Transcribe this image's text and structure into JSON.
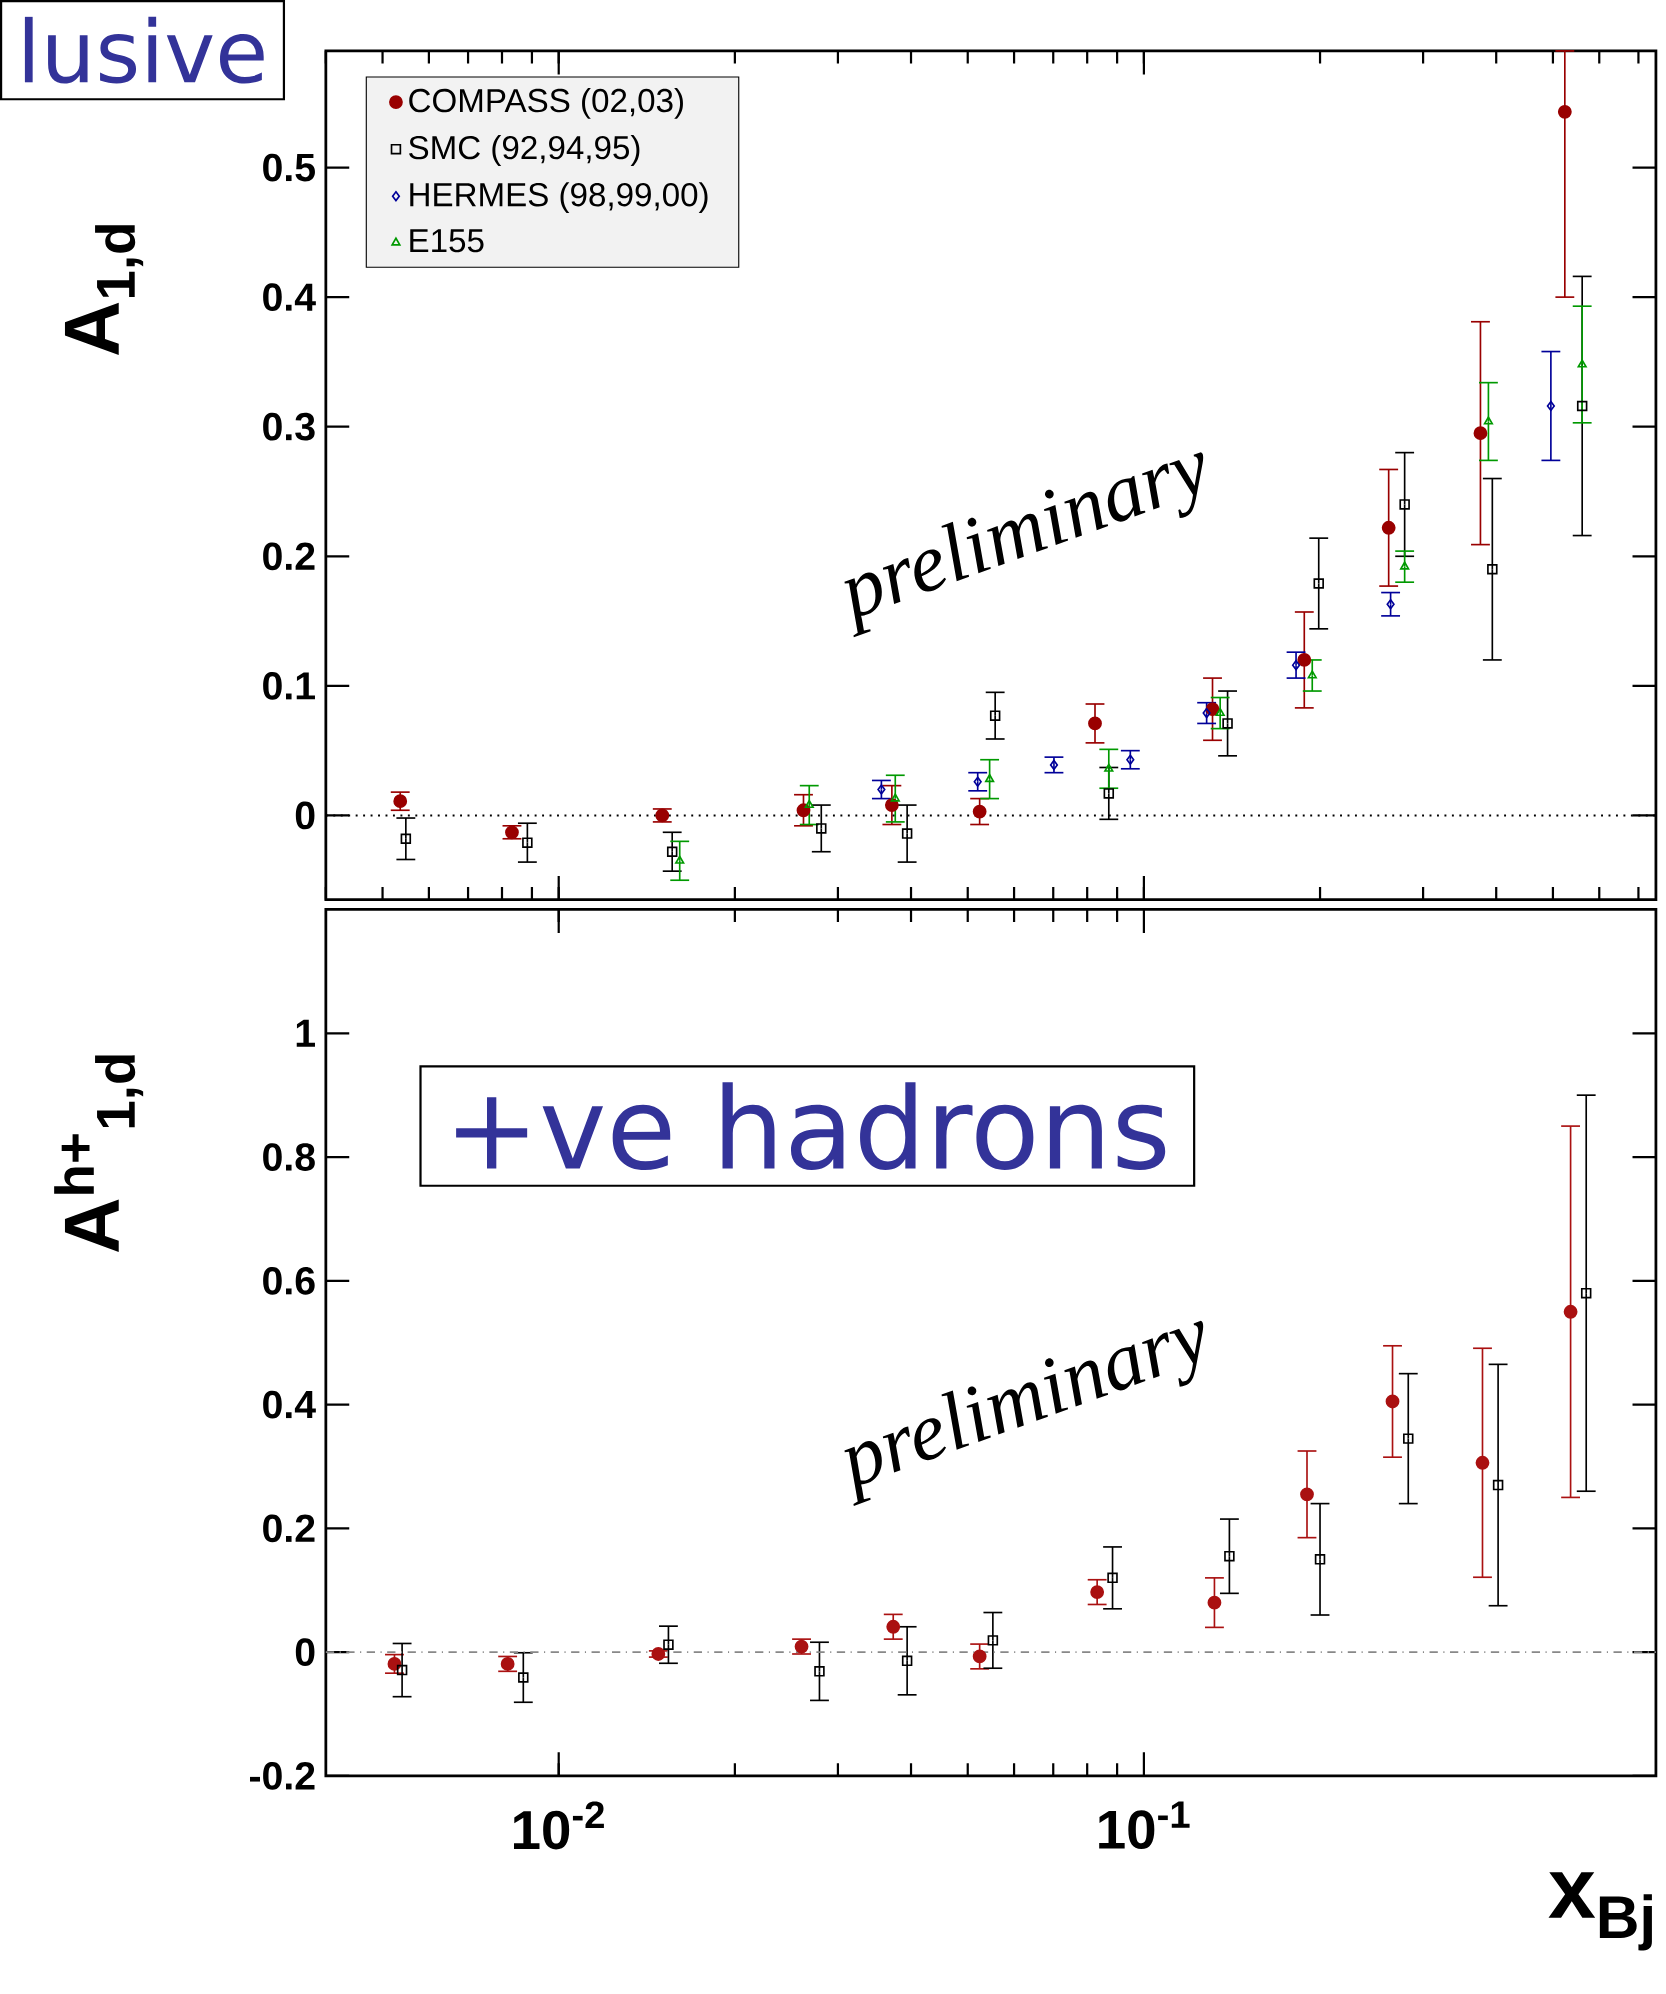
{
  "chart_data": [
    {
      "type": "scatter",
      "ylabel": "A$_{1,d}$",
      "log": "x",
      "tick_labels": "y",
      "legend": "top left",
      "xlim": [
        0.004,
        0.75
      ],
      "ylim": [
        -0.065,
        0.59
      ],
      "yticks": [
        0,
        0.1,
        0.2,
        0.3,
        0.4,
        0.5
      ],
      "ref_lines": [
        {
          "axis": "y",
          "value": 0,
          "line_style": "dotted",
          "color": "#000000"
        }
      ],
      "annotations": [
        "preliminary",
        "lusive"
      ],
      "series": [
        {
          "name": "COMPASS (02,03)",
          "color": "#990000",
          "marker": "circle",
          "x": [
            0.00536,
            0.00832,
            0.01503,
            0.0262,
            0.0371,
            0.0524,
            0.0825,
            0.131,
            0.188,
            0.262,
            0.376,
            0.524
          ],
          "values": [
            0.011,
            -0.013,
            0.0,
            0.004,
            0.008,
            0.003,
            0.071,
            0.082,
            0.12,
            0.222,
            0.295,
            0.543
          ],
          "errors": [
            0.007,
            0.005,
            0.005,
            0.012,
            0.015,
            0.01,
            0.015,
            0.024,
            0.037,
            0.045,
            0.086,
            [
              0.4,
              0.59
            ]
          ]
        },
        {
          "name": "SMC (92,94,95)",
          "color": "#000000",
          "marker": "square",
          "x": [
            0.00548,
            0.00884,
            0.01563,
            0.0281,
            0.0394,
            0.0557,
            0.0871,
            0.139,
            0.199,
            0.279,
            0.394,
            0.561
          ],
          "values": [
            -0.018,
            -0.021,
            -0.028,
            -0.01,
            -0.014,
            0.077,
            0.017,
            0.071,
            0.179,
            0.24,
            0.19,
            0.316
          ],
          "errors": [
            0.016,
            0.015,
            0.015,
            0.018,
            0.022,
            0.018,
            0.02,
            0.025,
            0.035,
            0.04,
            0.07,
            0.1
          ]
        },
        {
          "name": "HERMES (98,99,00)",
          "color": "#000099",
          "marker": "diamond",
          "x": [
            0.0356,
            0.052,
            0.0702,
            0.0948,
            0.128,
            0.182,
            0.264,
            0.496
          ],
          "values": [
            0.02,
            0.026,
            0.039,
            0.043,
            0.079,
            0.116,
            0.163,
            0.316
          ],
          "errors": [
            0.007,
            0.007,
            0.006,
            0.007,
            0.008,
            0.01,
            0.009,
            0.042
          ]
        },
        {
          "name": "E155",
          "color": "#009900",
          "marker": "triangle",
          "x": [
            0.0161,
            0.0268,
            0.0376,
            0.0545,
            0.0871,
            0.135,
            0.194,
            0.279,
            0.388,
            0.561
          ],
          "values": [
            -0.035,
            0.008,
            0.013,
            0.028,
            0.036,
            0.079,
            0.108,
            0.192,
            0.304,
            0.348
          ],
          "errors": [
            0.015,
            0.015,
            0.018,
            0.015,
            0.015,
            0.012,
            0.012,
            0.012,
            0.03,
            0.045
          ]
        }
      ]
    },
    {
      "type": "scatter",
      "ylabel": "A$^{h+}$$_{1,d}$",
      "xlabel": "x$_{Bj}$",
      "log": "x",
      "xlim": [
        0.004,
        0.75
      ],
      "xticks": [
        {
          "value": 0.01,
          "label": "10$^{-2}$"
        },
        {
          "value": 0.1,
          "label": "10$^{-1}$"
        }
      ],
      "ylim": [
        -0.2,
        1.2
      ],
      "yticks": [
        -0.2,
        0,
        0.2,
        0.4,
        0.6,
        0.8,
        1
      ],
      "ref_lines": [
        {
          "axis": "y",
          "value": 0,
          "line_style": "dashed",
          "color": "#888888"
        }
      ],
      "annotations": [
        "+ve hadrons",
        "preliminary"
      ],
      "series": [
        {
          "color": "#aa1111",
          "marker": "circle",
          "x": [
            0.00524,
            0.00818,
            0.0148,
            0.026,
            0.0373,
            0.0524,
            0.0832,
            0.132,
            0.19,
            0.266,
            0.379,
            0.536
          ],
          "values": [
            -0.019,
            -0.019,
            -0.003,
            0.009,
            0.041,
            -0.007,
            0.097,
            0.08,
            0.255,
            0.405,
            0.306,
            0.55
          ],
          "errors": [
            0.015,
            0.012,
            0.005,
            0.012,
            0.02,
            0.02,
            0.02,
            0.04,
            0.07,
            0.09,
            0.185,
            0.3
          ]
        },
        {
          "color": "#000000",
          "marker": "square",
          "x": [
            0.0054,
            0.0087,
            0.0154,
            0.0279,
            0.0394,
            0.0552,
            0.0884,
            0.14,
            0.2,
            0.283,
            0.403,
            0.57
          ],
          "values": [
            -0.029,
            -0.041,
            0.012,
            -0.031,
            -0.014,
            0.019,
            0.12,
            0.155,
            0.15,
            0.345,
            0.27,
            0.58
          ],
          "errors": [
            0.043,
            0.04,
            0.03,
            0.047,
            0.055,
            0.045,
            0.05,
            0.06,
            0.09,
            0.105,
            0.195,
            0.32
          ]
        }
      ]
    }
  ]
}
